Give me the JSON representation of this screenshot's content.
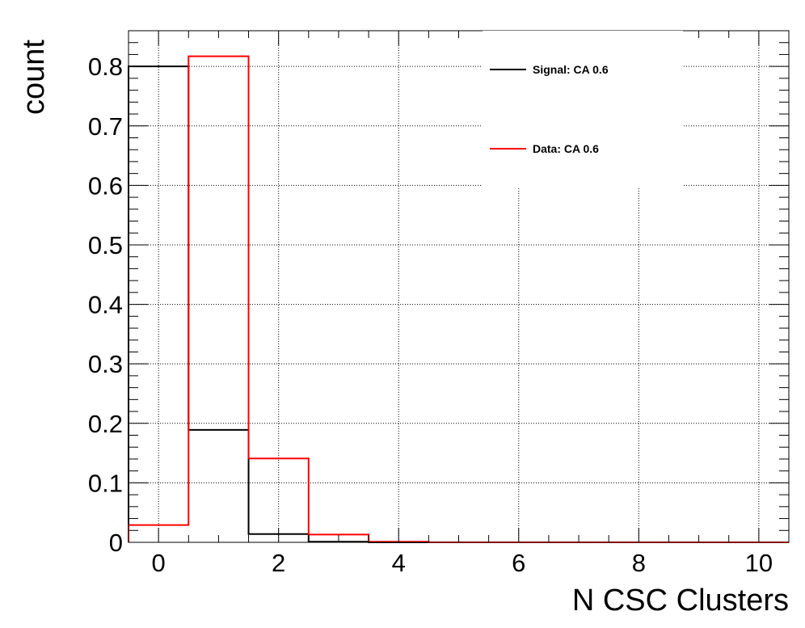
{
  "chart_data": {
    "type": "step-histogram",
    "title": "",
    "xlabel": "N CSC Clusters",
    "ylabel": "count",
    "xlim": [
      -0.5,
      10.5
    ],
    "ylim": [
      0,
      0.86
    ],
    "grid": true,
    "legend_position": "top-right",
    "x_major_ticks": [
      0,
      2,
      4,
      6,
      8,
      10
    ],
    "x_tick_labels": [
      "0",
      "2",
      "4",
      "6",
      "8",
      "10"
    ],
    "y_major_ticks": [
      0,
      0.1,
      0.2,
      0.3,
      0.4,
      0.5,
      0.6,
      0.7,
      0.8
    ],
    "y_tick_labels": [
      "0",
      "0.1",
      "0.2",
      "0.3",
      "0.4",
      "0.5",
      "0.6",
      "0.7",
      "0.8"
    ],
    "bin_edges": [
      -0.5,
      0.5,
      1.5,
      2.5,
      3.5,
      4.5,
      5.5,
      6.5,
      7.5,
      8.5,
      9.5,
      10.5
    ],
    "series": [
      {
        "name": "Signal: CA 0.6",
        "color": "#000000",
        "values": [
          0.8,
          0.189,
          0.014,
          0.001,
          0.0,
          0.0,
          0.0,
          0.0,
          0.0,
          0.0,
          0.0
        ]
      },
      {
        "name": "Data: CA 0.6",
        "color": "#ff0000",
        "values": [
          0.029,
          0.817,
          0.141,
          0.013,
          0.001,
          0.0,
          0.0,
          0.0,
          0.0,
          0.0,
          0.0
        ]
      }
    ]
  }
}
